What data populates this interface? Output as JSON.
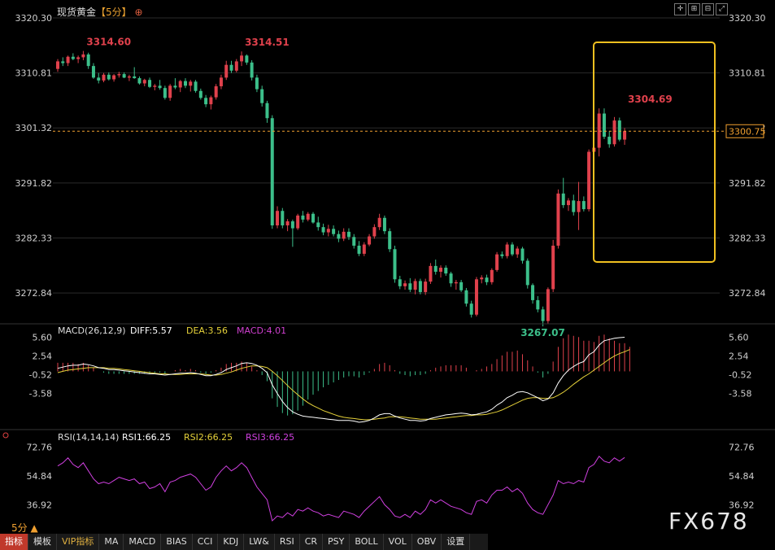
{
  "title": "现货黄金",
  "period_tag": "【5分】",
  "period_footer": "5分 ▲",
  "watermark": "FX678",
  "colors": {
    "up": "#e0414c",
    "down": "#3cbf8a",
    "bg": "#000000",
    "grid": "#2a2a2a",
    "diff": "#ffffff",
    "dea": "#e6d23a",
    "macd": "#d040d0",
    "rsi": "#d040e0",
    "highlight_box": "#f0c020",
    "last_price": "#f0a030"
  },
  "chart_data": [
    {
      "type": "candlestick",
      "title": "现货黄金",
      "y_ticks": [
        3320.3,
        3310.81,
        3301.32,
        3291.82,
        3282.33,
        3272.84
      ],
      "ylim": [
        3268.5,
        3320.3
      ],
      "last_price": 3300.75,
      "annotations": [
        {
          "label": "3314.60",
          "value": 3314.6,
          "bar": 5
        },
        {
          "label": "3314.51",
          "value": 3314.51,
          "bar": 36
        },
        {
          "label": "3304.69",
          "value": 3304.69,
          "bar": 111
        },
        {
          "label": "3267.07",
          "value": 3267.07,
          "bar": 90
        }
      ],
      "candles": [
        [
          3311.5,
          3313.2,
          3311.0,
          3312.8
        ],
        [
          3312.8,
          3313.5,
          3312.0,
          3312.5
        ],
        [
          3312.5,
          3313.8,
          3312.0,
          3313.6
        ],
        [
          3313.6,
          3314.2,
          3313.0,
          3313.2
        ],
        [
          3313.2,
          3313.8,
          3312.5,
          3313.5
        ],
        [
          3313.5,
          3314.6,
          3313.0,
          3314.0
        ],
        [
          3314.0,
          3314.3,
          3311.5,
          3312.0
        ],
        [
          3312.0,
          3312.5,
          3309.8,
          3310.0
        ],
        [
          3310.0,
          3310.8,
          3309.0,
          3309.5
        ],
        [
          3309.5,
          3310.8,
          3309.2,
          3310.5
        ],
        [
          3310.5,
          3310.9,
          3309.5,
          3309.7
        ],
        [
          3309.7,
          3310.6,
          3309.3,
          3310.4
        ],
        [
          3310.4,
          3311.0,
          3310.0,
          3310.6
        ],
        [
          3310.6,
          3310.9,
          3309.9,
          3310.0
        ],
        [
          3310.0,
          3310.5,
          3309.4,
          3310.2
        ],
        [
          3310.2,
          3311.8,
          3309.8,
          3309.9
        ],
        [
          3309.9,
          3310.2,
          3308.8,
          3309.0
        ],
        [
          3309.0,
          3309.8,
          3308.5,
          3309.6
        ],
        [
          3309.6,
          3310.0,
          3308.2,
          3308.4
        ],
        [
          3308.4,
          3308.9,
          3307.8,
          3308.6
        ],
        [
          3308.6,
          3309.6,
          3307.9,
          3308.2
        ],
        [
          3308.2,
          3308.6,
          3306.2,
          3306.5
        ],
        [
          3306.5,
          3308.9,
          3306.0,
          3308.6
        ],
        [
          3308.6,
          3309.9,
          3308.0,
          3308.3
        ],
        [
          3308.3,
          3309.6,
          3307.5,
          3309.4
        ],
        [
          3309.4,
          3309.9,
          3308.2,
          3308.6
        ],
        [
          3308.6,
          3309.6,
          3307.6,
          3309.3
        ],
        [
          3309.3,
          3309.6,
          3307.4,
          3307.7
        ],
        [
          3307.7,
          3308.1,
          3306.2,
          3306.5
        ],
        [
          3306.5,
          3307.0,
          3304.9,
          3305.4
        ],
        [
          3305.4,
          3306.9,
          3304.5,
          3306.6
        ],
        [
          3306.6,
          3308.9,
          3306.2,
          3308.5
        ],
        [
          3308.5,
          3310.5,
          3308.0,
          3310.0
        ],
        [
          3310.0,
          3312.9,
          3309.6,
          3312.2
        ],
        [
          3312.2,
          3312.9,
          3310.8,
          3311.2
        ],
        [
          3311.2,
          3313.2,
          3310.9,
          3312.8
        ],
        [
          3312.8,
          3314.51,
          3312.0,
          3313.8
        ],
        [
          3313.8,
          3314.0,
          3312.2,
          3312.6
        ],
        [
          3312.6,
          3313.0,
          3309.5,
          3310.0
        ],
        [
          3310.0,
          3310.5,
          3307.5,
          3308.0
        ],
        [
          3308.0,
          3308.6,
          3305.0,
          3305.6
        ],
        [
          3305.6,
          3306.0,
          3302.2,
          3303.0
        ],
        [
          3303.0,
          3303.5,
          3283.9,
          3284.5
        ],
        [
          3284.5,
          3287.8,
          3284.0,
          3287.0
        ],
        [
          3287.0,
          3287.5,
          3284.0,
          3284.5
        ],
        [
          3284.5,
          3285.6,
          3283.5,
          3285.2
        ],
        [
          3285.2,
          3285.5,
          3280.8,
          3284.0
        ],
        [
          3284.0,
          3286.5,
          3283.7,
          3286.2
        ],
        [
          3286.2,
          3287.0,
          3285.0,
          3285.5
        ],
        [
          3285.5,
          3286.8,
          3285.2,
          3286.5
        ],
        [
          3286.5,
          3286.8,
          3284.8,
          3285.0
        ],
        [
          3285.0,
          3286.0,
          3283.6,
          3284.2
        ],
        [
          3284.2,
          3284.8,
          3282.8,
          3283.3
        ],
        [
          3283.3,
          3284.6,
          3282.6,
          3283.9
        ],
        [
          3283.9,
          3284.5,
          3282.6,
          3283.0
        ],
        [
          3283.0,
          3283.6,
          3281.6,
          3282.2
        ],
        [
          3282.2,
          3284.0,
          3281.8,
          3283.4
        ],
        [
          3283.4,
          3284.0,
          3282.0,
          3282.5
        ],
        [
          3282.5,
          3283.0,
          3280.5,
          3281.0
        ],
        [
          3281.0,
          3281.8,
          3279.2,
          3279.6
        ],
        [
          3279.6,
          3281.6,
          3279.2,
          3281.2
        ],
        [
          3281.2,
          3283.0,
          3280.9,
          3282.6
        ],
        [
          3282.6,
          3284.7,
          3282.2,
          3284.2
        ],
        [
          3284.2,
          3286.5,
          3283.7,
          3285.8
        ],
        [
          3285.8,
          3286.2,
          3283.0,
          3283.5
        ],
        [
          3283.5,
          3284.0,
          3279.9,
          3280.4
        ],
        [
          3280.4,
          3281.0,
          3274.6,
          3275.2
        ],
        [
          3275.2,
          3275.8,
          3273.5,
          3274.0
        ],
        [
          3274.0,
          3275.0,
          3273.4,
          3274.5
        ],
        [
          3274.5,
          3275.4,
          3273.0,
          3273.4
        ],
        [
          3273.4,
          3275.3,
          3272.6,
          3274.9
        ],
        [
          3274.9,
          3275.3,
          3272.6,
          3273.0
        ],
        [
          3273.0,
          3275.3,
          3272.5,
          3274.8
        ],
        [
          3274.8,
          3278.0,
          3274.4,
          3277.5
        ],
        [
          3277.5,
          3278.6,
          3276.0,
          3276.5
        ],
        [
          3276.5,
          3277.6,
          3275.5,
          3277.2
        ],
        [
          3277.2,
          3277.6,
          3275.8,
          3276.2
        ],
        [
          3276.2,
          3276.5,
          3273.9,
          3274.5
        ],
        [
          3274.5,
          3275.1,
          3273.4,
          3274.7
        ],
        [
          3274.7,
          3275.1,
          3273.0,
          3273.3
        ],
        [
          3273.3,
          3273.7,
          3270.5,
          3271.0
        ],
        [
          3271.0,
          3271.5,
          3268.6,
          3269.1
        ],
        [
          3269.1,
          3275.6,
          3268.8,
          3275.2
        ],
        [
          3275.2,
          3275.9,
          3274.5,
          3275.5
        ],
        [
          3275.5,
          3276.0,
          3274.2,
          3274.7
        ],
        [
          3274.7,
          3277.1,
          3274.3,
          3276.8
        ],
        [
          3276.8,
          3279.9,
          3276.5,
          3279.5
        ],
        [
          3279.5,
          3280.0,
          3278.8,
          3279.2
        ],
        [
          3279.2,
          3281.6,
          3278.8,
          3281.2
        ],
        [
          3281.2,
          3281.6,
          3279.2,
          3279.5
        ],
        [
          3279.5,
          3280.9,
          3278.9,
          3280.5
        ],
        [
          3280.5,
          3280.8,
          3277.9,
          3278.4
        ],
        [
          3278.4,
          3278.8,
          3273.6,
          3274.2
        ],
        [
          3274.2,
          3274.5,
          3271.0,
          3271.6
        ],
        [
          3271.6,
          3272.3,
          3269.5,
          3270.0
        ],
        [
          3270.0,
          3270.5,
          3267.07,
          3268.0
        ],
        [
          3268.0,
          3273.8,
          3267.5,
          3273.5
        ],
        [
          3273.5,
          3282.0,
          3273.0,
          3281.0
        ],
        [
          3281.0,
          3290.7,
          3280.5,
          3290.0
        ],
        [
          3290.0,
          3292.7,
          3287.5,
          3288.0
        ],
        [
          3288.0,
          3289.2,
          3287.0,
          3288.8
        ],
        [
          3288.8,
          3289.8,
          3286.2,
          3286.8
        ],
        [
          3286.8,
          3292.0,
          3283.7,
          3288.7
        ],
        [
          3288.7,
          3289.5,
          3286.9,
          3287.3
        ],
        [
          3287.3,
          3297.6,
          3286.9,
          3297.2
        ],
        [
          3297.2,
          3298.8,
          3295.6,
          3297.9
        ],
        [
          3297.9,
          3304.69,
          3296.4,
          3303.8
        ],
        [
          3303.8,
          3304.69,
          3299.4,
          3299.8
        ],
        [
          3299.8,
          3300.8,
          3297.9,
          3298.5
        ],
        [
          3298.5,
          3303.2,
          3298.1,
          3302.6
        ],
        [
          3302.6,
          3303.1,
          3299.0,
          3299.3
        ],
        [
          3299.3,
          3301.3,
          3298.4,
          3300.75
        ]
      ]
    },
    {
      "type": "line",
      "title": "MACD(26,12,9)",
      "legend": [
        {
          "label": "DIFF:5.57",
          "color": "#ffffff"
        },
        {
          "label": "DEA:3.56",
          "color": "#e6d23a"
        },
        {
          "label": "MACD:4.01",
          "color": "#d040d0"
        }
      ],
      "y_ticks": [
        5.6,
        2.54,
        -0.52,
        -3.58
      ],
      "ylim": [
        -9.5,
        6.3
      ],
      "diff": [
        0.5,
        0.7,
        0.9,
        1.0,
        1.0,
        1.2,
        1.1,
        0.9,
        0.6,
        0.5,
        0.3,
        0.3,
        0.2,
        0.1,
        0.0,
        -0.1,
        -0.2,
        -0.3,
        -0.4,
        -0.4,
        -0.5,
        -0.6,
        -0.5,
        -0.4,
        -0.3,
        -0.3,
        -0.2,
        -0.3,
        -0.5,
        -0.7,
        -0.7,
        -0.5,
        -0.2,
        0.3,
        0.6,
        0.9,
        1.3,
        1.4,
        1.3,
        1.0,
        0.5,
        -0.2,
        -2.2,
        -3.6,
        -4.9,
        -5.9,
        -6.6,
        -7.0,
        -7.3,
        -7.4,
        -7.5,
        -7.6,
        -7.7,
        -7.8,
        -7.9,
        -8.0,
        -8.0,
        -8.0,
        -8.1,
        -8.3,
        -8.2,
        -8.0,
        -7.6,
        -7.1,
        -6.9,
        -6.9,
        -7.3,
        -7.6,
        -7.8,
        -8.0,
        -8.0,
        -8.1,
        -8.0,
        -7.7,
        -7.5,
        -7.3,
        -7.1,
        -7.0,
        -6.9,
        -6.8,
        -6.9,
        -7.1,
        -7.0,
        -6.8,
        -6.6,
        -6.2,
        -5.5,
        -5.0,
        -4.3,
        -3.9,
        -3.4,
        -3.3,
        -3.5,
        -3.9,
        -4.3,
        -4.8,
        -4.5,
        -3.5,
        -1.9,
        -0.7,
        0.2,
        0.8,
        1.3,
        1.6,
        2.7,
        3.2,
        4.3,
        5.0,
        5.2,
        5.4,
        5.5,
        5.57
      ],
      "dea": [
        -0.2,
        0.0,
        0.2,
        0.3,
        0.4,
        0.5,
        0.6,
        0.6,
        0.6,
        0.6,
        0.5,
        0.5,
        0.4,
        0.3,
        0.2,
        0.1,
        0.0,
        -0.1,
        -0.2,
        -0.3,
        -0.4,
        -0.4,
        -0.5,
        -0.5,
        -0.5,
        -0.4,
        -0.4,
        -0.4,
        -0.4,
        -0.5,
        -0.6,
        -0.6,
        -0.5,
        -0.3,
        -0.1,
        0.2,
        0.5,
        0.7,
        0.9,
        0.9,
        0.8,
        0.6,
        0.0,
        -0.7,
        -1.5,
        -2.3,
        -3.1,
        -3.8,
        -4.5,
        -5.1,
        -5.6,
        -6.0,
        -6.4,
        -6.7,
        -7.0,
        -7.3,
        -7.5,
        -7.6,
        -7.7,
        -7.8,
        -7.9,
        -7.9,
        -7.8,
        -7.7,
        -7.6,
        -7.4,
        -7.4,
        -7.4,
        -7.5,
        -7.6,
        -7.7,
        -7.8,
        -7.8,
        -7.8,
        -7.8,
        -7.7,
        -7.6,
        -7.5,
        -7.4,
        -7.3,
        -7.2,
        -7.2,
        -7.1,
        -7.1,
        -7.0,
        -6.8,
        -6.6,
        -6.3,
        -5.9,
        -5.5,
        -5.1,
        -4.7,
        -4.4,
        -4.3,
        -4.3,
        -4.4,
        -4.4,
        -4.3,
        -3.9,
        -3.4,
        -2.8,
        -2.1,
        -1.5,
        -0.9,
        -0.4,
        0.2,
        0.8,
        1.4,
        2.0,
        2.5,
        2.9,
        3.2,
        3.56
      ],
      "macd": [
        1.4,
        1.4,
        1.4,
        1.4,
        1.2,
        1.4,
        1.0,
        0.6,
        0.0,
        -0.2,
        -0.4,
        -0.4,
        -0.4,
        -0.4,
        -0.4,
        -0.4,
        -0.4,
        -0.4,
        -0.4,
        -0.2,
        -0.2,
        -0.4,
        0.0,
        0.2,
        0.4,
        0.2,
        0.4,
        0.2,
        -0.2,
        -0.4,
        -0.2,
        0.2,
        0.6,
        1.2,
        1.4,
        1.4,
        1.6,
        1.4,
        0.8,
        0.2,
        -0.6,
        -1.6,
        -4.4,
        -5.8,
        -6.8,
        -7.2,
        -7.0,
        -6.4,
        -5.6,
        -4.6,
        -3.8,
        -3.2,
        -2.6,
        -2.2,
        -1.8,
        -1.4,
        -1.0,
        -0.8,
        -0.8,
        -1.0,
        -0.6,
        -0.2,
        0.4,
        1.2,
        1.4,
        1.0,
        0.2,
        -0.4,
        -0.6,
        -0.8,
        -0.6,
        -0.6,
        -0.4,
        0.2,
        0.6,
        0.8,
        1.0,
        1.0,
        1.0,
        1.0,
        0.6,
        0.0,
        0.2,
        0.4,
        0.8,
        1.2,
        2.0,
        2.6,
        3.2,
        3.2,
        3.4,
        2.8,
        1.8,
        0.8,
        -0.2,
        -1.0,
        -0.4,
        1.6,
        4.0,
        5.4,
        6.0,
        5.8,
        5.6,
        5.0,
        5.0,
        4.8,
        5.8,
        6.0,
        5.4,
        5.0,
        4.6,
        4.6,
        4.01
      ]
    },
    {
      "type": "line",
      "title": "RSI(14,14,14)",
      "legend": [
        {
          "label": "RSI1:66.25",
          "color": "#ffffff"
        },
        {
          "label": "RSI2:66.25",
          "color": "#e6d23a"
        },
        {
          "label": "RSI3:66.25",
          "color": "#d040e0"
        }
      ],
      "y_ticks": [
        72.76,
        54.84,
        36.92
      ],
      "ylim": [
        22,
        75
      ],
      "rsi": [
        61,
        63,
        66,
        62,
        60,
        63,
        58,
        53,
        50,
        51,
        50,
        52,
        54,
        53,
        52,
        53,
        50,
        51,
        47,
        48,
        50,
        45,
        51,
        52,
        54,
        55,
        56,
        54,
        50,
        46,
        48,
        54,
        58,
        61,
        58,
        60,
        63,
        60,
        54,
        48,
        44,
        40,
        27,
        30,
        29,
        32,
        30,
        34,
        33,
        35,
        33,
        32,
        30,
        31,
        30,
        29,
        33,
        32,
        31,
        29,
        33,
        36,
        39,
        42,
        37,
        34,
        30,
        29,
        31,
        29,
        33,
        31,
        34,
        40,
        38,
        40,
        38,
        36,
        35,
        34,
        32,
        31,
        39,
        40,
        38,
        43,
        46,
        46,
        48,
        45,
        47,
        44,
        38,
        34,
        32,
        31,
        37,
        43,
        52,
        50,
        51,
        50,
        52,
        51,
        60,
        62,
        67,
        64,
        63,
        66,
        64,
        66.25
      ]
    }
  ],
  "toolbar": [
    "指标",
    "模板",
    "VIP指标",
    "MA",
    "MACD",
    "BIAS",
    "CCI",
    "KDJ",
    "LW&",
    "RSI",
    "CR",
    "PSY",
    "BOLL",
    "VOL",
    "OBV",
    "设置"
  ]
}
